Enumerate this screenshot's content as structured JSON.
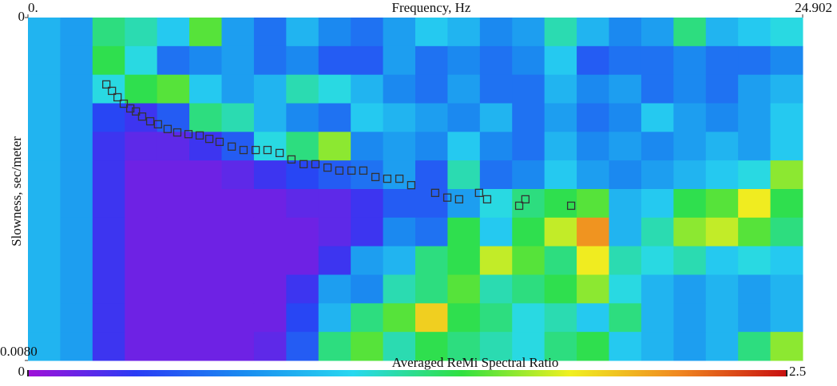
{
  "chart_data": {
    "type": "heatmap",
    "xlabel": "Frequency, Hz",
    "ylabel": "Slowness, sec/meter",
    "xlim": [
      0,
      24.902
    ],
    "ylim": [
      0,
      0.008
    ],
    "xticks": [
      {
        "value": 0,
        "label": "0."
      },
      24.902
    ],
    "yticks": [
      0,
      {
        "value": 0.008,
        "label": "0.0080"
      }
    ],
    "z": [
      [
        0.9,
        0.8,
        1.3,
        1.2,
        1.0,
        1.5,
        0.8,
        0.6,
        0.9,
        0.7,
        0.6,
        0.8,
        1.0,
        0.9,
        0.7,
        0.8,
        1.2,
        0.9,
        0.7,
        0.8,
        1.3,
        0.9,
        1.0,
        1.1
      ],
      [
        0.9,
        0.8,
        1.4,
        1.1,
        0.6,
        0.7,
        0.8,
        0.6,
        0.7,
        0.5,
        0.5,
        0.8,
        0.6,
        0.7,
        0.6,
        0.7,
        1.0,
        0.5,
        0.6,
        0.6,
        0.7,
        0.6,
        0.6,
        0.7
      ],
      [
        0.9,
        0.8,
        1.1,
        1.4,
        1.5,
        1.0,
        0.8,
        0.9,
        1.2,
        1.1,
        0.9,
        0.7,
        0.6,
        0.8,
        0.6,
        0.6,
        0.9,
        0.7,
        0.8,
        0.6,
        0.7,
        0.6,
        0.8,
        0.9
      ],
      [
        0.9,
        0.8,
        0.4,
        0.3,
        0.5,
        1.3,
        1.2,
        0.9,
        0.7,
        0.6,
        1.0,
        0.9,
        0.8,
        0.7,
        0.9,
        0.6,
        0.8,
        0.6,
        0.7,
        1.0,
        0.8,
        0.7,
        0.8,
        1.0
      ],
      [
        0.9,
        0.8,
        0.3,
        0.2,
        0.2,
        0.3,
        0.5,
        1.1,
        1.3,
        1.6,
        0.7,
        0.8,
        0.7,
        1.0,
        0.7,
        0.6,
        0.9,
        0.7,
        0.8,
        0.7,
        0.8,
        0.9,
        0.8,
        1.0
      ],
      [
        0.9,
        0.8,
        0.3,
        0.15,
        0.15,
        0.15,
        0.2,
        0.3,
        0.4,
        0.5,
        0.6,
        0.8,
        0.5,
        1.2,
        0.6,
        0.7,
        1.0,
        0.8,
        0.7,
        0.8,
        0.9,
        1.0,
        1.1,
        1.6
      ],
      [
        0.9,
        0.8,
        0.3,
        0.15,
        0.15,
        0.15,
        0.15,
        0.15,
        0.2,
        0.2,
        0.3,
        0.5,
        0.5,
        0.8,
        1.1,
        1.3,
        1.4,
        1.5,
        0.9,
        1.0,
        1.4,
        1.5,
        1.8,
        1.4
      ],
      [
        0.9,
        0.8,
        0.3,
        0.15,
        0.15,
        0.15,
        0.15,
        0.15,
        0.15,
        0.2,
        0.3,
        0.7,
        0.6,
        1.4,
        1.0,
        1.4,
        1.7,
        2.1,
        0.9,
        1.2,
        1.6,
        1.7,
        1.5,
        1.3
      ],
      [
        0.9,
        0.8,
        0.3,
        0.15,
        0.15,
        0.15,
        0.15,
        0.15,
        0.15,
        0.3,
        0.8,
        0.9,
        1.3,
        1.4,
        1.7,
        1.5,
        1.3,
        1.8,
        1.2,
        1.1,
        1.2,
        1.0,
        1.1,
        1.0
      ],
      [
        0.9,
        0.8,
        0.3,
        0.15,
        0.15,
        0.15,
        0.15,
        0.15,
        0.3,
        0.8,
        0.7,
        1.2,
        1.3,
        1.5,
        1.2,
        1.3,
        1.4,
        1.6,
        1.1,
        0.9,
        0.8,
        0.9,
        0.8,
        0.9
      ],
      [
        0.9,
        0.8,
        0.3,
        0.15,
        0.15,
        0.15,
        0.15,
        0.15,
        0.4,
        0.9,
        1.3,
        1.5,
        1.9,
        1.4,
        1.3,
        1.1,
        1.2,
        1.0,
        1.3,
        0.9,
        0.8,
        0.9,
        0.8,
        0.9
      ],
      [
        0.9,
        0.8,
        0.3,
        0.15,
        0.15,
        0.15,
        0.15,
        0.2,
        0.5,
        1.3,
        1.5,
        1.2,
        1.4,
        1.3,
        1.2,
        1.1,
        1.3,
        1.4,
        1.0,
        0.9,
        0.8,
        0.9,
        1.3,
        1.6
      ]
    ],
    "picks": {
      "color": "#333333",
      "x": [
        2.52,
        2.7,
        2.88,
        3.08,
        3.29,
        3.47,
        3.67,
        3.93,
        4.18,
        4.49,
        4.8,
        5.16,
        5.52,
        5.83,
        6.16,
        6.55,
        6.93,
        7.32,
        7.7,
        8.09,
        8.47,
        8.86,
        9.24,
        9.63,
        10.01,
        10.4,
        10.78,
        11.17,
        11.55,
        11.94,
        12.32,
        13.09,
        13.48,
        13.86,
        14.5,
        14.76,
        15.79,
        15.99,
        17.46
      ],
      "y": [
        0.00156,
        0.00171,
        0.00186,
        0.00201,
        0.00212,
        0.00219,
        0.00231,
        0.00242,
        0.00249,
        0.0026,
        0.00268,
        0.00272,
        0.00275,
        0.00283,
        0.0029,
        0.00301,
        0.00309,
        0.00309,
        0.00309,
        0.00316,
        0.00331,
        0.00342,
        0.00342,
        0.0035,
        0.00357,
        0.00357,
        0.00357,
        0.00372,
        0.00376,
        0.00376,
        0.00391,
        0.00409,
        0.0042,
        0.00424,
        0.00409,
        0.00424,
        0.00439,
        0.00424,
        0.00439
      ]
    },
    "colorscale": [
      "#a010d8",
      "#2a3cf5",
      "#1a8cf0",
      "#28d8f0",
      "#30e040",
      "#f0f020",
      "#f08820",
      "#c81010"
    ],
    "colorbar": {
      "label": "Averaged ReMi Spectral Ratio",
      "lim": [
        0,
        2.5
      ],
      "ticks": [
        0,
        2.5
      ]
    }
  }
}
